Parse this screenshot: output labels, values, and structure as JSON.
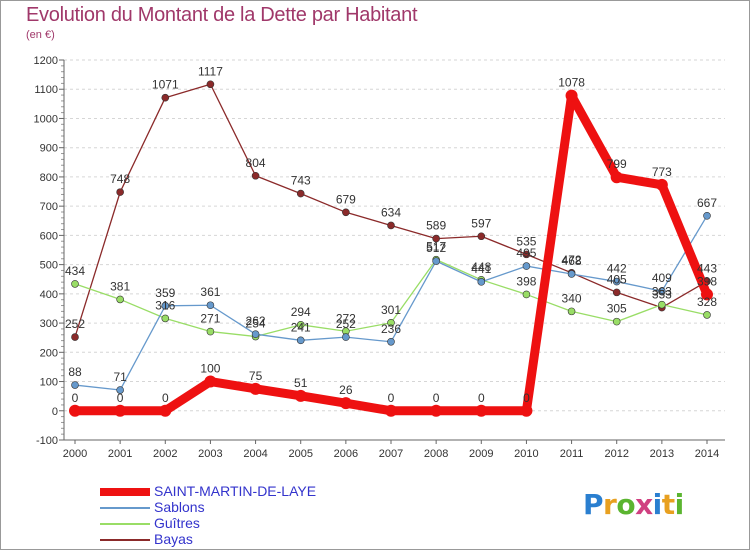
{
  "title": "Evolution du Montant de la Dette par Habitant",
  "unit": "(en €)",
  "logo": {
    "letters": [
      "P",
      "r",
      "o",
      "x",
      "i",
      "t",
      "i"
    ],
    "colors": [
      "#2a7fd0",
      "#e8a020",
      "#5bb530",
      "#d04080",
      "#2a7fd0",
      "#e8a020",
      "#5bb530"
    ]
  },
  "chart_data": {
    "type": "line",
    "title": "Evolution du Montant de la Dette par Habitant",
    "ylabel": "(en €)",
    "xlabel": "",
    "x": [
      "2000",
      "2001",
      "2002",
      "2003",
      "2004",
      "2005",
      "2006",
      "2007",
      "2008",
      "2009",
      "2010",
      "2011",
      "2012",
      "2013",
      "2014"
    ],
    "ylim": [
      -100,
      1200
    ],
    "yticks": [
      "-100",
      "0",
      "100",
      "200",
      "300",
      "400",
      "500",
      "600",
      "700",
      "800",
      "900",
      "1000",
      "1100",
      "1200"
    ],
    "grid": "horizontal",
    "legend": "bottom-left",
    "series": [
      {
        "name": "Bayas",
        "color": "#8b2a2a",
        "values": [
          252,
          748,
          1071,
          1117,
          804,
          743,
          679,
          634,
          589,
          597,
          535,
          472,
          405,
          353,
          443
        ],
        "labels": [
          "252",
          "748",
          "1071",
          "1117",
          "804",
          "743",
          "679",
          "634",
          "589",
          "597",
          "535",
          "472",
          "405",
          "353",
          "443"
        ]
      },
      {
        "name": "Guîtres",
        "color": "#99dd66",
        "values": [
          434,
          381,
          316,
          271,
          254,
          294,
          272,
          301,
          517,
          448,
          398,
          340,
          305,
          363,
          328
        ],
        "labels": [
          "434",
          "381",
          "316",
          "271",
          "254",
          "294",
          "272",
          "301",
          "517",
          "448",
          "398",
          "340",
          "305",
          "363",
          "328"
        ]
      },
      {
        "name": "Sablons",
        "color": "#6699cc",
        "values": [
          88,
          71,
          359,
          361,
          262,
          241,
          252,
          236,
          512,
          441,
          495,
          468,
          442,
          409,
          667
        ],
        "labels": [
          "88",
          "71",
          "359",
          "361",
          "262",
          "241",
          "252",
          "236",
          "512",
          "441",
          "495",
          "468",
          "442",
          "409",
          "667"
        ]
      },
      {
        "name": "SAINT-MARTIN-DE-LAYE",
        "color": "#ee1111",
        "values": [
          0,
          0,
          0,
          100,
          75,
          51,
          26,
          0,
          0,
          0,
          0,
          1078,
          799,
          773,
          398
        ],
        "labels": [
          "0",
          "0",
          "0",
          "100",
          "75",
          "51",
          "26",
          "0",
          "0",
          "0",
          "0",
          "1078",
          "799",
          "773",
          "398"
        ]
      }
    ],
    "legend_entries": [
      "SAINT-MARTIN-DE-LAYE",
      "Sablons",
      "Guîtres",
      "Bayas"
    ]
  }
}
